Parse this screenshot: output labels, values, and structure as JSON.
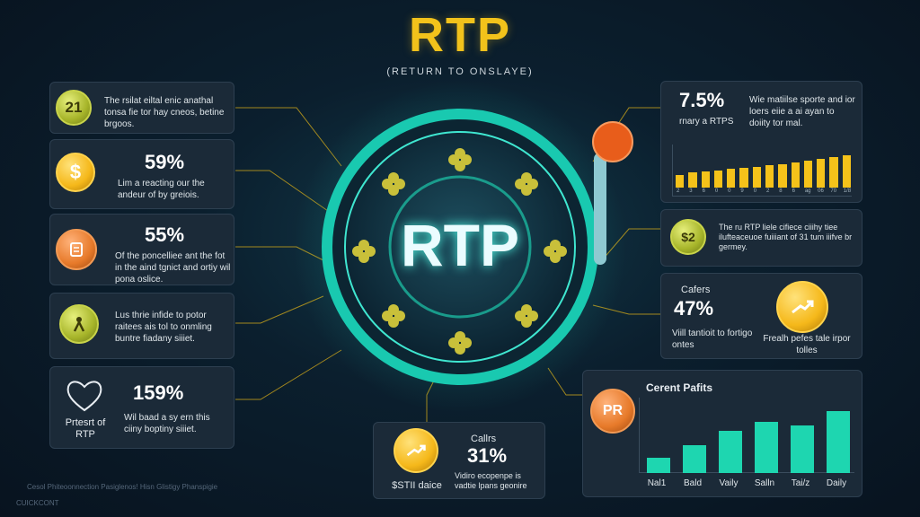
{
  "header": {
    "title": "RTP",
    "subtitle": "(RETURN TO ONSLAYE)"
  },
  "center": {
    "label": "RTP"
  },
  "left_cards": [
    {
      "coin": "21",
      "percent": "",
      "text": "The rsilat eiltal enic anathal tonsa fie tor hay cneos, betine brgoos."
    },
    {
      "coin": "$",
      "percent": "59%",
      "text": "Lim a reacting our the andeur of by greiois."
    },
    {
      "coin": "",
      "percent": "55%",
      "text": "Of the poncelliee ant the fot in the aind tgnict and ortiy wil pona oslice."
    },
    {
      "coin": "",
      "percent": "",
      "text": "Lus thrie infide to potor raitees ais tol to onmling buntre fiadany siiiet."
    },
    {
      "coin": "",
      "percent": "159%",
      "caption": "Prtesrt of RTP",
      "text": "Wil baad a sy ern this ciiny boptiny siiiet."
    }
  ],
  "right_top": {
    "percent": "7.5%",
    "sub": "rnary a RTPS",
    "text": "Wie matiilse sporte and ior loers eiie a ai ayan to doiity tor mal.",
    "bar_values": [
      0.35,
      0.42,
      0.45,
      0.48,
      0.52,
      0.55,
      0.58,
      0.62,
      0.65,
      0.7,
      0.75,
      0.8,
      0.85,
      0.9
    ],
    "ticks": [
      "2",
      "3",
      "6",
      "0",
      "0",
      "9",
      "0",
      "2",
      "8",
      "6",
      "ag",
      "06",
      "70",
      "1/8"
    ]
  },
  "right_mid": {
    "coin": "$2",
    "text": "The ru RTP liele cifiece ciiihy tiee ilufteaceuoe fuiiiant of 31 tum iiifve br germey."
  },
  "right_card3": {
    "heading": "Cafers",
    "percent": "47%",
    "left_text": "Viill tantioit to fortigo ontes",
    "right_text": "Frealh pefes tale irpor tolles"
  },
  "bottom_center": {
    "heading": "Callrs",
    "percent": "31%",
    "coin_label": "$STII daice",
    "text": "Vidiro ecopenpe is vadtie lpans geonire"
  },
  "bottom_chart": {
    "badge": "PR",
    "title": "Cerent Pafits",
    "categories": [
      "Nal1",
      "Bald",
      "Vaily",
      "Salln",
      "Tai/z",
      "Daily"
    ],
    "values": [
      0.22,
      0.4,
      0.6,
      0.73,
      0.68,
      0.88
    ]
  },
  "footer": {
    "line1": "Cesol Phiteoonnection Pasiglenos! Hisn Glistigy Phanspigie",
    "line2": "CUICKCONT"
  }
}
